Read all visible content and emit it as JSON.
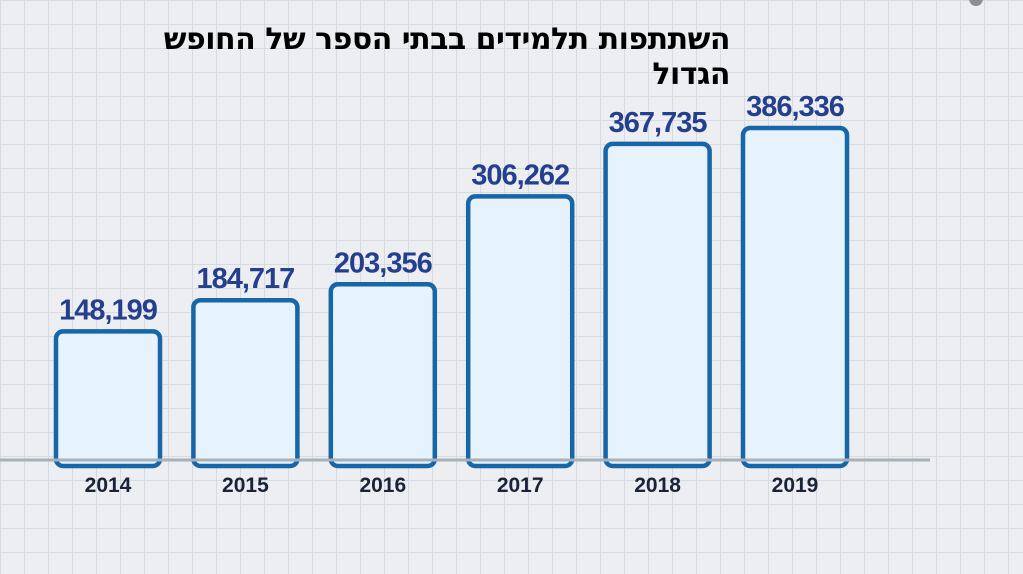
{
  "chart_data": {
    "type": "bar",
    "title": "השתתפות תלמידים בבתי הספר של החופש הגדול",
    "categories": [
      "2014",
      "2015",
      "2016",
      "2017",
      "2018",
      "2019"
    ],
    "values": [
      148199,
      184717,
      203356,
      306262,
      367735,
      386336
    ],
    "data_labels": [
      "148,199",
      "184,717",
      "203,356",
      "306,262",
      "367,735",
      "386,336"
    ],
    "xlabel": "",
    "ylabel": "",
    "ylim": [
      0,
      386336
    ],
    "grid": true,
    "legend": "none",
    "colors": {
      "bar_fill": "#e6f3fc",
      "bar_stroke": "#1666a8",
      "value_label": "#233f8e",
      "category_label": "#1a2338",
      "baseline": "#a9b0b8"
    }
  }
}
